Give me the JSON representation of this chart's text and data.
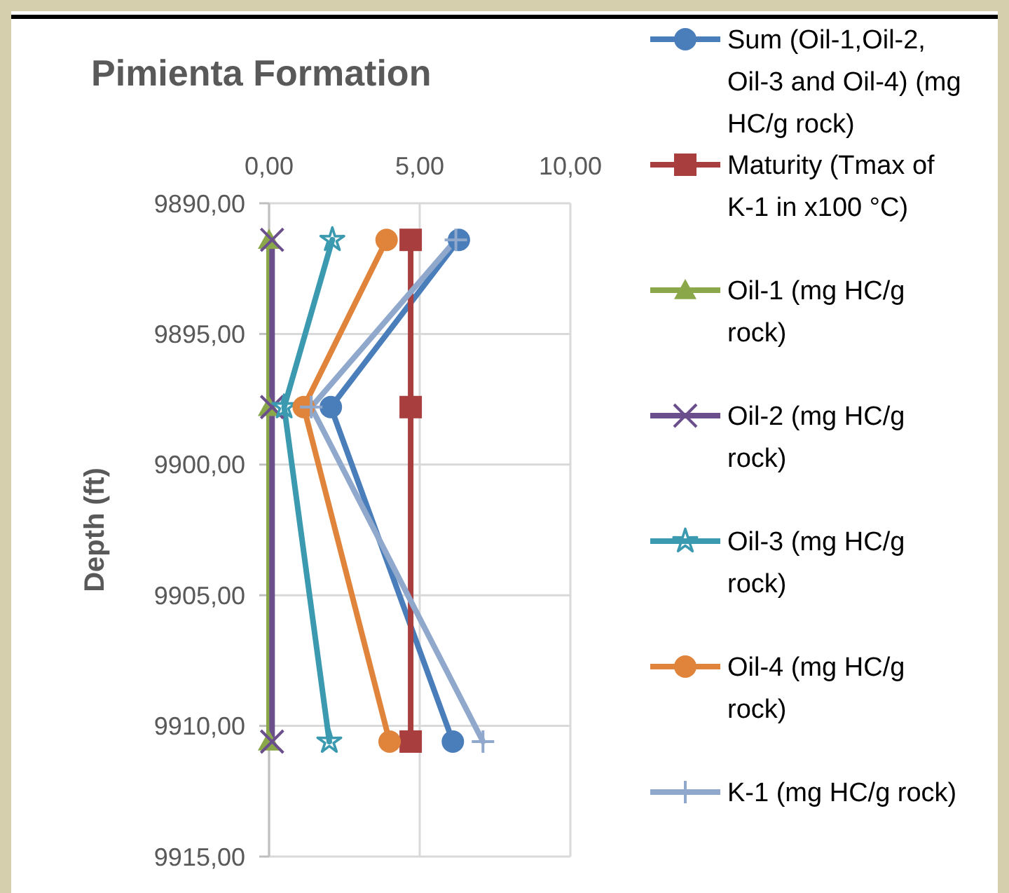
{
  "chart_data": {
    "type": "line",
    "title": "Pimienta Formation",
    "ylabel": "Depth (ft)",
    "xlim": [
      0,
      10
    ],
    "xticks": [
      {
        "value": 0,
        "label": "0,00"
      },
      {
        "value": 5,
        "label": "5,00"
      },
      {
        "value": 10,
        "label": "10,00"
      }
    ],
    "ylim": [
      9915,
      9890
    ],
    "yticks": [
      {
        "value": 9890,
        "label": "9890,00"
      },
      {
        "value": 9895,
        "label": "9895,00"
      },
      {
        "value": 9900,
        "label": "9900,00"
      },
      {
        "value": 9905,
        "label": "9905,00"
      },
      {
        "value": 9910,
        "label": "9910,00"
      },
      {
        "value": 9915,
        "label": "9915,00"
      }
    ],
    "grid": true,
    "legend": "right",
    "line_style": "solid",
    "series": [
      {
        "name": "Sum (Oil-1,Oil-2, Oil-3 and Oil-4) (mg HC/g rock)",
        "color": "#4a7ebb",
        "marker": "circle",
        "x": [
          6.3,
          2.05,
          6.1
        ],
        "values": [
          9891.4,
          9897.8,
          9910.6
        ]
      },
      {
        "name": "Maturity (Tmax of K-1 in x100 °C)",
        "color": "#a83e3e",
        "marker": "square",
        "x": [
          4.7,
          4.7,
          4.7
        ],
        "values": [
          9891.4,
          9897.8,
          9910.6
        ]
      },
      {
        "name": "Oil-1 (mg HC/g rock)",
        "color": "#8aa84a",
        "marker": "triangle",
        "x": [
          0,
          0,
          0
        ],
        "values": [
          9891.4,
          9897.8,
          9910.6
        ]
      },
      {
        "name": "Oil-2 (mg HC/g rock)",
        "color": "#6a4f8c",
        "marker": "x",
        "x": [
          0.1,
          0.1,
          0.1
        ],
        "values": [
          9891.4,
          9897.8,
          9910.6
        ]
      },
      {
        "name": "Oil-3 (mg HC/g rock)",
        "color": "#3b9ab0",
        "marker": "star",
        "x": [
          2.1,
          0.5,
          2.0
        ],
        "values": [
          9891.4,
          9897.8,
          9910.6
        ]
      },
      {
        "name": "Oil-4 (mg HC/g rock)",
        "color": "#e0843c",
        "marker": "circle",
        "x": [
          3.9,
          1.15,
          4.0
        ],
        "values": [
          9891.4,
          9897.8,
          9910.6
        ]
      },
      {
        "name": "K-1 (mg HC/g rock)",
        "color": "#8fa8cc",
        "marker": "cross",
        "x": [
          6.2,
          1.4,
          7.1
        ],
        "values": [
          9891.4,
          9897.8,
          9910.6
        ]
      }
    ]
  }
}
